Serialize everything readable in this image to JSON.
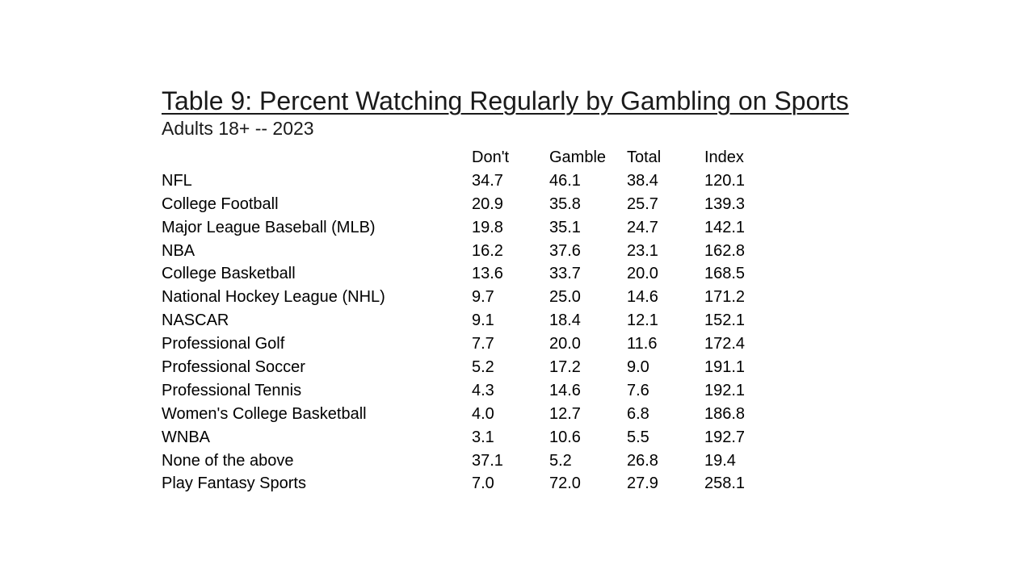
{
  "title": "Table 9: Percent Watching Regularly by Gambling on Sports",
  "subtitle": "Adults 18+ -- 2023",
  "table": {
    "headers": [
      "",
      "Don't",
      "Gamble",
      "Total",
      "Index"
    ],
    "rows": [
      [
        "NFL",
        "34.7",
        "46.1",
        "38.4",
        "120.1"
      ],
      [
        "College Football",
        "20.9",
        "35.8",
        "25.7",
        "139.3"
      ],
      [
        "Major League Baseball (MLB)",
        "19.8",
        "35.1",
        "24.7",
        "142.1"
      ],
      [
        "NBA",
        "16.2",
        "37.6",
        "23.1",
        "162.8"
      ],
      [
        "College Basketball",
        "13.6",
        "33.7",
        "20.0",
        "168.5"
      ],
      [
        "National Hockey League (NHL)",
        "9.7",
        "25.0",
        "14.6",
        "171.2"
      ],
      [
        "NASCAR",
        "9.1",
        "18.4",
        "12.1",
        "152.1"
      ],
      [
        "Professional Golf",
        "7.7",
        "20.0",
        "11.6",
        "172.4"
      ],
      [
        "Professional Soccer",
        "5.2",
        "17.2",
        "9.0",
        "191.1"
      ],
      [
        "Professional Tennis",
        "4.3",
        "14.6",
        "7.6",
        "192.1"
      ],
      [
        "Women's College Basketball",
        "4.0",
        "12.7",
        "6.8",
        "186.8"
      ],
      [
        "WNBA",
        "3.1",
        "10.6",
        "5.5",
        "192.7"
      ],
      [
        "None of the above",
        "37.1",
        "5.2",
        "26.8",
        "19.4"
      ],
      [
        "Play Fantasy Sports",
        "7.0",
        "72.0",
        "27.9",
        "258.1"
      ]
    ]
  }
}
